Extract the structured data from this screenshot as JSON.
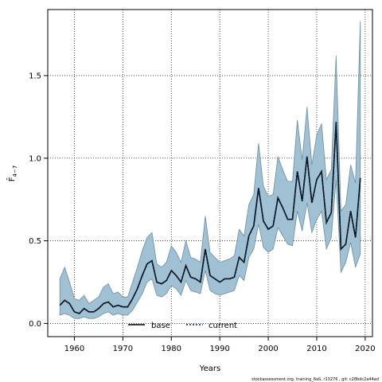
{
  "chart_data": {
    "type": "line",
    "title": "",
    "xlabel": "Years",
    "ylabel": "F̄",
    "ylabel_subscript": "4−7",
    "xlim": [
      1954.5,
      2021.5
    ],
    "ylim": [
      -0.08,
      1.9
    ],
    "x_ticks": [
      1960,
      1970,
      1980,
      1990,
      2000,
      2010,
      2020
    ],
    "x_tick_labels": [
      "1960",
      "1970",
      "1980",
      "1990",
      "2000",
      "2010",
      "2020"
    ],
    "y_ticks": [
      0.0,
      0.5,
      1.0,
      1.5
    ],
    "y_tick_labels": [
      "0.0",
      "0.5",
      "1.0",
      "1.5"
    ],
    "grid": true,
    "legend_position": "bottom-center",
    "colors": {
      "band": "#9fc1d3",
      "band_edge": "#6e8e9e",
      "base": "#000000",
      "current": "#0a2f4a"
    },
    "x": [
      1957,
      1958,
      1959,
      1960,
      1961,
      1962,
      1963,
      1964,
      1965,
      1966,
      1967,
      1968,
      1969,
      1970,
      1971,
      1972,
      1973,
      1974,
      1975,
      1976,
      1977,
      1978,
      1979,
      1980,
      1981,
      1982,
      1983,
      1984,
      1985,
      1986,
      1987,
      1988,
      1989,
      1990,
      1991,
      1992,
      1993,
      1994,
      1995,
      1996,
      1997,
      1998,
      1999,
      2000,
      2001,
      2002,
      2003,
      2004,
      2005,
      2006,
      2007,
      2008,
      2009,
      2010,
      2011,
      2012,
      2013,
      2014,
      2015,
      2016,
      2017,
      2018,
      2019
    ],
    "band_upper": [
      0.27,
      0.34,
      0.25,
      0.15,
      0.14,
      0.17,
      0.12,
      0.14,
      0.16,
      0.22,
      0.24,
      0.18,
      0.19,
      0.16,
      0.16,
      0.25,
      0.34,
      0.44,
      0.52,
      0.55,
      0.36,
      0.34,
      0.37,
      0.47,
      0.43,
      0.37,
      0.5,
      0.4,
      0.39,
      0.37,
      0.65,
      0.43,
      0.4,
      0.37,
      0.38,
      0.39,
      0.41,
      0.57,
      0.53,
      0.72,
      0.78,
      1.09,
      0.83,
      0.77,
      0.78,
      1.01,
      0.93,
      0.86,
      0.86,
      1.23,
      0.99,
      1.31,
      0.96,
      1.14,
      1.21,
      0.87,
      0.93,
      1.62,
      0.68,
      0.72,
      0.96,
      0.85,
      1.83
    ],
    "band_lower": [
      0.05,
      0.06,
      0.05,
      0.03,
      0.03,
      0.04,
      0.03,
      0.03,
      0.04,
      0.06,
      0.07,
      0.05,
      0.06,
      0.05,
      0.05,
      0.08,
      0.13,
      0.18,
      0.25,
      0.27,
      0.17,
      0.16,
      0.18,
      0.23,
      0.21,
      0.17,
      0.26,
      0.2,
      0.19,
      0.18,
      0.32,
      0.2,
      0.18,
      0.17,
      0.18,
      0.19,
      0.2,
      0.29,
      0.26,
      0.4,
      0.45,
      0.6,
      0.46,
      0.43,
      0.45,
      0.58,
      0.53,
      0.48,
      0.47,
      0.68,
      0.56,
      0.73,
      0.55,
      0.63,
      0.68,
      0.45,
      0.52,
      0.87,
      0.31,
      0.37,
      0.49,
      0.34,
      0.42
    ],
    "series": [
      {
        "name": "base",
        "style": "solid",
        "values": [
          0.11,
          0.14,
          0.12,
          0.07,
          0.06,
          0.09,
          0.07,
          0.07,
          0.09,
          0.12,
          0.13,
          0.1,
          0.11,
          0.1,
          0.1,
          0.15,
          0.21,
          0.29,
          0.36,
          0.38,
          0.25,
          0.24,
          0.26,
          0.32,
          0.29,
          0.25,
          0.35,
          0.28,
          0.27,
          0.25,
          0.45,
          0.29,
          0.27,
          0.25,
          0.27,
          0.27,
          0.28,
          0.4,
          0.37,
          0.53,
          0.59,
          0.82,
          0.62,
          0.57,
          0.59,
          0.76,
          0.7,
          0.63,
          0.63,
          0.92,
          0.74,
          1.01,
          0.73,
          0.87,
          0.92,
          0.61,
          0.67,
          1.22,
          0.45,
          0.48,
          0.68,
          0.52,
          0.88
        ]
      },
      {
        "name": "current",
        "style": "dotted",
        "values": [
          0.11,
          0.14,
          0.12,
          0.07,
          0.06,
          0.09,
          0.07,
          0.07,
          0.09,
          0.12,
          0.13,
          0.1,
          0.11,
          0.1,
          0.1,
          0.15,
          0.21,
          0.29,
          0.36,
          0.38,
          0.25,
          0.24,
          0.26,
          0.32,
          0.29,
          0.25,
          0.35,
          0.28,
          0.27,
          0.25,
          0.45,
          0.29,
          0.27,
          0.25,
          0.27,
          0.27,
          0.28,
          0.4,
          0.37,
          0.53,
          0.59,
          0.82,
          0.62,
          0.57,
          0.59,
          0.76,
          0.7,
          0.63,
          0.63,
          0.92,
          0.74,
          1.01,
          0.73,
          0.87,
          0.92,
          0.61,
          0.67,
          1.22,
          0.45,
          0.48,
          0.68,
          0.52,
          0.88
        ]
      }
    ]
  },
  "footer": "stockassessment.org, training_6aS, r13276 , git: c28bdc2a44ad"
}
